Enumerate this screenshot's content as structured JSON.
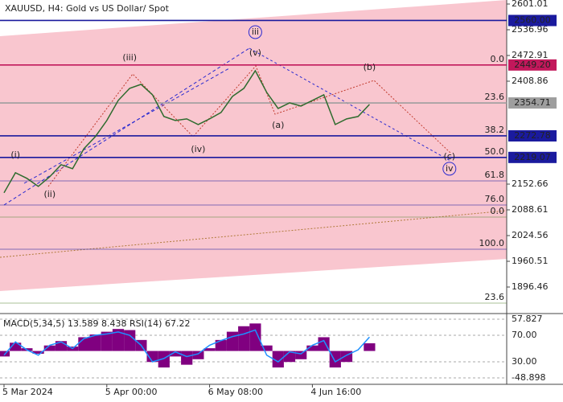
{
  "chart_data": [
    {
      "type": "line",
      "title": "XAUUSD, H4:  Gold vs US Dollar/ Spot",
      "categories": [
        "5 Mar 2024",
        null,
        null,
        null,
        null,
        null,
        null,
        null,
        null,
        "5 Apr 00:00",
        null,
        null,
        null,
        null,
        null,
        null,
        null,
        null,
        "6 May 08:00",
        null,
        null,
        null,
        null,
        null,
        null,
        null,
        null,
        "4 Jun 16:00",
        null,
        null,
        null,
        null,
        null,
        null,
        null,
        null,
        null,
        null,
        null,
        null,
        null,
        null,
        null,
        null
      ],
      "values": [
        2131,
        2181,
        2167,
        2147,
        2171,
        2201,
        2191,
        2241,
        2271,
        2311,
        2361,
        2391,
        2401,
        2375,
        2321,
        2311,
        2315,
        2301,
        2315,
        2331,
        2371,
        2391,
        2435,
        2381,
        2341,
        2355,
        2347,
        2361,
        2375,
        2301,
        2315,
        2321,
        2351,
        null,
        null,
        null,
        null,
        null,
        null,
        null,
        null,
        null,
        null,
        null
      ],
      "color": "#2e6b2e",
      "ylim": [
        1834.4,
        2611.0
      ],
      "yticks": [
        2601.01,
        2536.96,
        2472.91,
        2408.86,
        2152.66,
        2088.61,
        2024.56,
        1960.51,
        1896.46
      ],
      "levels": [
        {
          "value": 2560,
          "label": "2560.00",
          "color": "#1a1a9e"
        },
        {
          "value": 2449.2,
          "label": "2449.20",
          "color": "#c2185b"
        },
        {
          "value": 2354.71,
          "color": "#9e9e9e"
        },
        {
          "value": 2272.78,
          "color": "#1a1a9e"
        },
        {
          "value": 2219.07,
          "color": "#1a1a9e"
        }
      ],
      "fib_levels": [
        {
          "label": "0.0",
          "value": 2449.2,
          "color": "#1a1a9e"
        },
        {
          "label": "23.6",
          "value": 2354.71,
          "color": "#1a1a9e"
        },
        {
          "label": "38.2",
          "value": 2272.78,
          "color": "#1a1a9e"
        },
        {
          "label": "50.0",
          "value": 2219.07,
          "color": "#1a1a9e"
        },
        {
          "label": "61.8",
          "value": 2160.7,
          "color": "#1a1a9e"
        },
        {
          "label": "76.0",
          "value": 2100.6,
          "color": "#1a1a9e"
        },
        {
          "label": "0.0",
          "value": 2070.6,
          "color": "#5a8a3a"
        },
        {
          "label": "100.0",
          "value": 1990.5,
          "color": "#1a1a9e"
        },
        {
          "label": "23.6",
          "value": 1856.4,
          "color": "#5a8a3a"
        }
      ],
      "annotations": [
        {
          "text": "(i)",
          "point": 1,
          "value": 2225,
          "color": "#c0392b"
        },
        {
          "text": "(ii)",
          "point": 4,
          "value": 2127,
          "color": "#c0392b"
        },
        {
          "text": "(iii)",
          "point": 11,
          "value": 2467,
          "color": "#c0392b"
        },
        {
          "text": "iii",
          "point": 22,
          "value": 2531,
          "color": "#2a2ad0",
          "circled": true
        },
        {
          "text": "(v)",
          "point": 22,
          "value": 2479,
          "color": "#c0392b"
        },
        {
          "text": "(iv)",
          "point": 17,
          "value": 2239,
          "color": "#c0392b"
        },
        {
          "text": "(a)",
          "point": 24,
          "value": 2299,
          "color": "#c0392b"
        },
        {
          "text": "(b)",
          "point": 32,
          "value": 2443,
          "color": "#c0392b"
        },
        {
          "text": "(c)",
          "point": 39,
          "value": 2221,
          "color": "#c0392b"
        },
        {
          "text": "iv",
          "point": 39,
          "value": 2191,
          "color": "#2a2ad0",
          "circled": true
        }
      ]
    },
    {
      "type": "macd",
      "title": "MACD(5,34,5) 13.589 8.438 RSI(14) 67.22",
      "ylim": [
        -60.6,
        65.1
      ],
      "yticks": [
        57.827,
        -48.898
      ],
      "y2lim": [
        -3.9,
        100.3
      ],
      "y2ticks": [
        {
          "value": 70,
          "label": "70.00"
        },
        {
          "value": 30,
          "label": "30.00"
        }
      ],
      "series": [
        {
          "color": "#800080",
          "values": [
            -10,
            15,
            5,
            -5,
            10,
            18,
            8,
            25,
            30,
            35,
            40,
            38,
            20,
            -20,
            -30,
            -10,
            -25,
            -15,
            5,
            20,
            35,
            45,
            50,
            10,
            -30,
            -20,
            -15,
            10,
            25,
            -30,
            -20,
            0,
            14
          ]
        },
        {
          "color": "#1e90ff",
          "axis": "y2",
          "values": [
            40,
            60,
            48,
            40,
            55,
            60,
            50,
            65,
            70,
            72,
            75,
            70,
            55,
            30,
            35,
            45,
            38,
            42,
            55,
            62,
            68,
            72,
            78,
            40,
            30,
            45,
            42,
            55,
            62,
            30,
            40,
            48,
            67.22
          ]
        }
      ]
    }
  ]
}
